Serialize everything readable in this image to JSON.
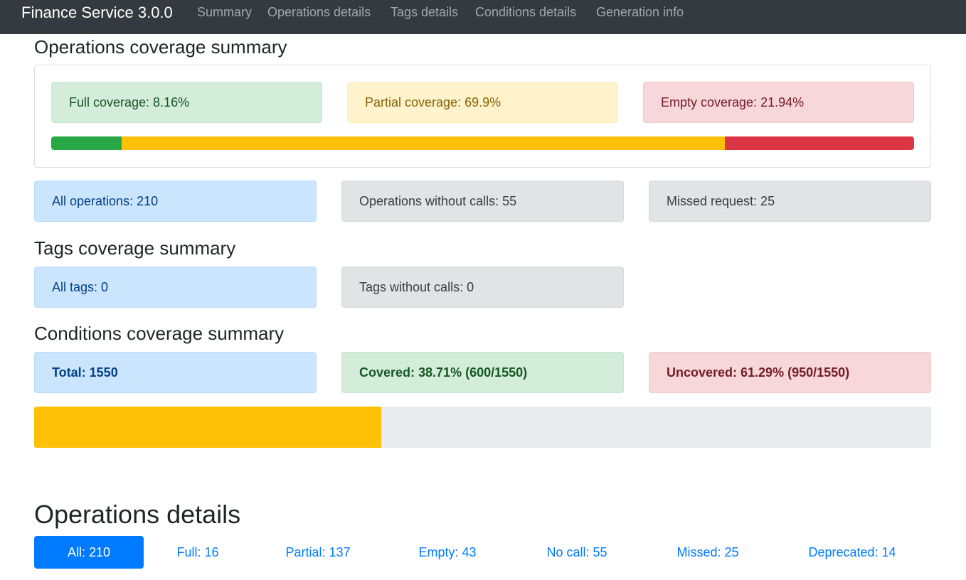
{
  "navbar": {
    "brand": "Finance Service 3.0.0",
    "links": [
      "Summary",
      "Operations details",
      "Tags details",
      "Conditions details",
      "Generation info"
    ]
  },
  "operations_summary": {
    "title": "Operations coverage summary",
    "full_label": "Full coverage: 8.16%",
    "partial_label": "Partial coverage: 69.9%",
    "empty_label": "Empty coverage: 21.94%",
    "full_percent": 8.16,
    "partial_percent": 69.9,
    "empty_percent": 21.94,
    "all_operations": "All operations: 210",
    "without_calls": "Operations without calls: 55",
    "missed_request": "Missed request: 25"
  },
  "tags_summary": {
    "title": "Tags coverage summary",
    "all_tags": "All tags: 0",
    "without_calls": "Tags without calls: 0"
  },
  "conditions_summary": {
    "title": "Conditions coverage summary",
    "total": "Total: 1550",
    "covered": "Covered: 38.71% (600/1550)",
    "uncovered": "Uncovered: 61.29% (950/1550)",
    "covered_percent": 38.71
  },
  "operations_details": {
    "title": "Operations details",
    "filters": [
      "All: 210",
      "Full: 16",
      "Partial: 137",
      "Empty: 43",
      "No call: 55",
      "Missed: 25",
      "Deprecated: 14"
    ],
    "active_filter": "All: 210"
  },
  "colors": {
    "success": "#28a745",
    "warning": "#ffc107",
    "danger": "#dc3545",
    "primary": "#007bff",
    "navbar": "#343a40"
  }
}
